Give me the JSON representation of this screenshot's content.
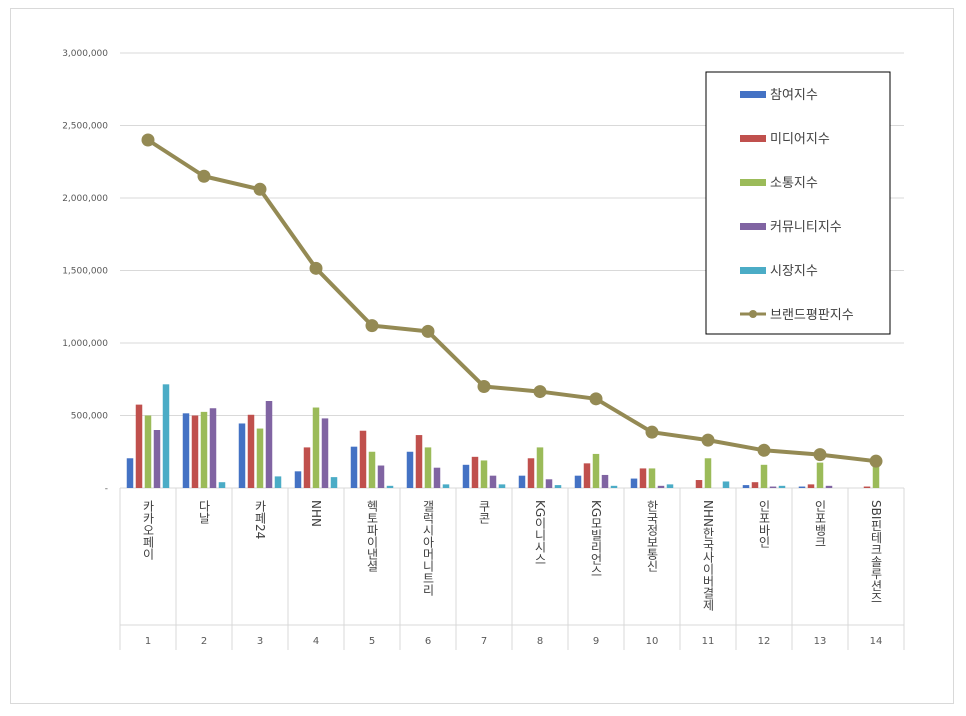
{
  "chart_data": {
    "type": "bar",
    "title": "",
    "xlabel": "",
    "ylabel": "",
    "ylim": [
      0,
      3000000
    ],
    "yticks": [
      0,
      500000,
      1000000,
      1500000,
      2000000,
      2500000,
      3000000
    ],
    "ytick_labels": [
      "-",
      "500,000",
      "1,000,000",
      "1,500,000",
      "2,000,000",
      "2,500,000",
      "3,000,000"
    ],
    "grid": true,
    "legend_position": "top-right",
    "categories": [
      "카카오페이",
      "다날",
      "카페24",
      "NHN",
      "헥토파이낸셜",
      "갤럭시아머니트리",
      "쿠콘",
      "KG이니시스",
      "KG모빌리언스",
      "한국정보통신",
      "NHN한국사이버결제",
      "인포바인",
      "인포뱅크",
      "SBI핀테크솔루션즈"
    ],
    "ranks": [
      "1",
      "2",
      "3",
      "4",
      "5",
      "6",
      "7",
      "8",
      "9",
      "10",
      "11",
      "12",
      "13",
      "14"
    ],
    "series": [
      {
        "name": "참여지수",
        "type": "bar",
        "color": "#4472c4",
        "values": [
          205000,
          515000,
          445000,
          115000,
          285000,
          250000,
          160000,
          85000,
          85000,
          65000,
          0,
          20000,
          10000,
          0
        ]
      },
      {
        "name": "미디어지수",
        "type": "bar",
        "color": "#c0504d",
        "values": [
          575000,
          500000,
          505000,
          280000,
          395000,
          365000,
          215000,
          205000,
          170000,
          135000,
          55000,
          40000,
          25000,
          10000
        ]
      },
      {
        "name": "소통지수",
        "type": "bar",
        "color": "#9bbb59",
        "values": [
          500000,
          525000,
          410000,
          555000,
          250000,
          280000,
          190000,
          280000,
          235000,
          135000,
          205000,
          160000,
          175000,
          165000
        ]
      },
      {
        "name": "커뮤니티지수",
        "type": "bar",
        "color": "#8064a2",
        "values": [
          400000,
          550000,
          600000,
          480000,
          155000,
          140000,
          85000,
          60000,
          90000,
          15000,
          0,
          10000,
          15000,
          0
        ]
      },
      {
        "name": "시장지수",
        "type": "bar",
        "color": "#4bacc6",
        "values": [
          715000,
          40000,
          80000,
          75000,
          15000,
          25000,
          25000,
          20000,
          15000,
          25000,
          45000,
          15000,
          0,
          0
        ]
      },
      {
        "name": "브랜드평판지수",
        "type": "line",
        "color": "#948a54",
        "values": [
          2400000,
          2150000,
          2060000,
          1515000,
          1120000,
          1080000,
          700000,
          665000,
          615000,
          385000,
          330000,
          260000,
          230000,
          185000
        ]
      }
    ]
  }
}
